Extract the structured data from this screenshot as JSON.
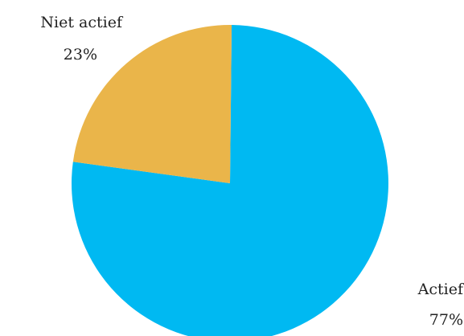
{
  "chart_data": {
    "type": "pie",
    "slices": [
      {
        "label": "Actief",
        "value": 77,
        "value_label": "77%",
        "color": "#00B9F2"
      },
      {
        "label": "Niet actief",
        "value": 23,
        "value_label": "23%",
        "color": "#EAB54A"
      }
    ],
    "title": "",
    "legend": "none"
  }
}
